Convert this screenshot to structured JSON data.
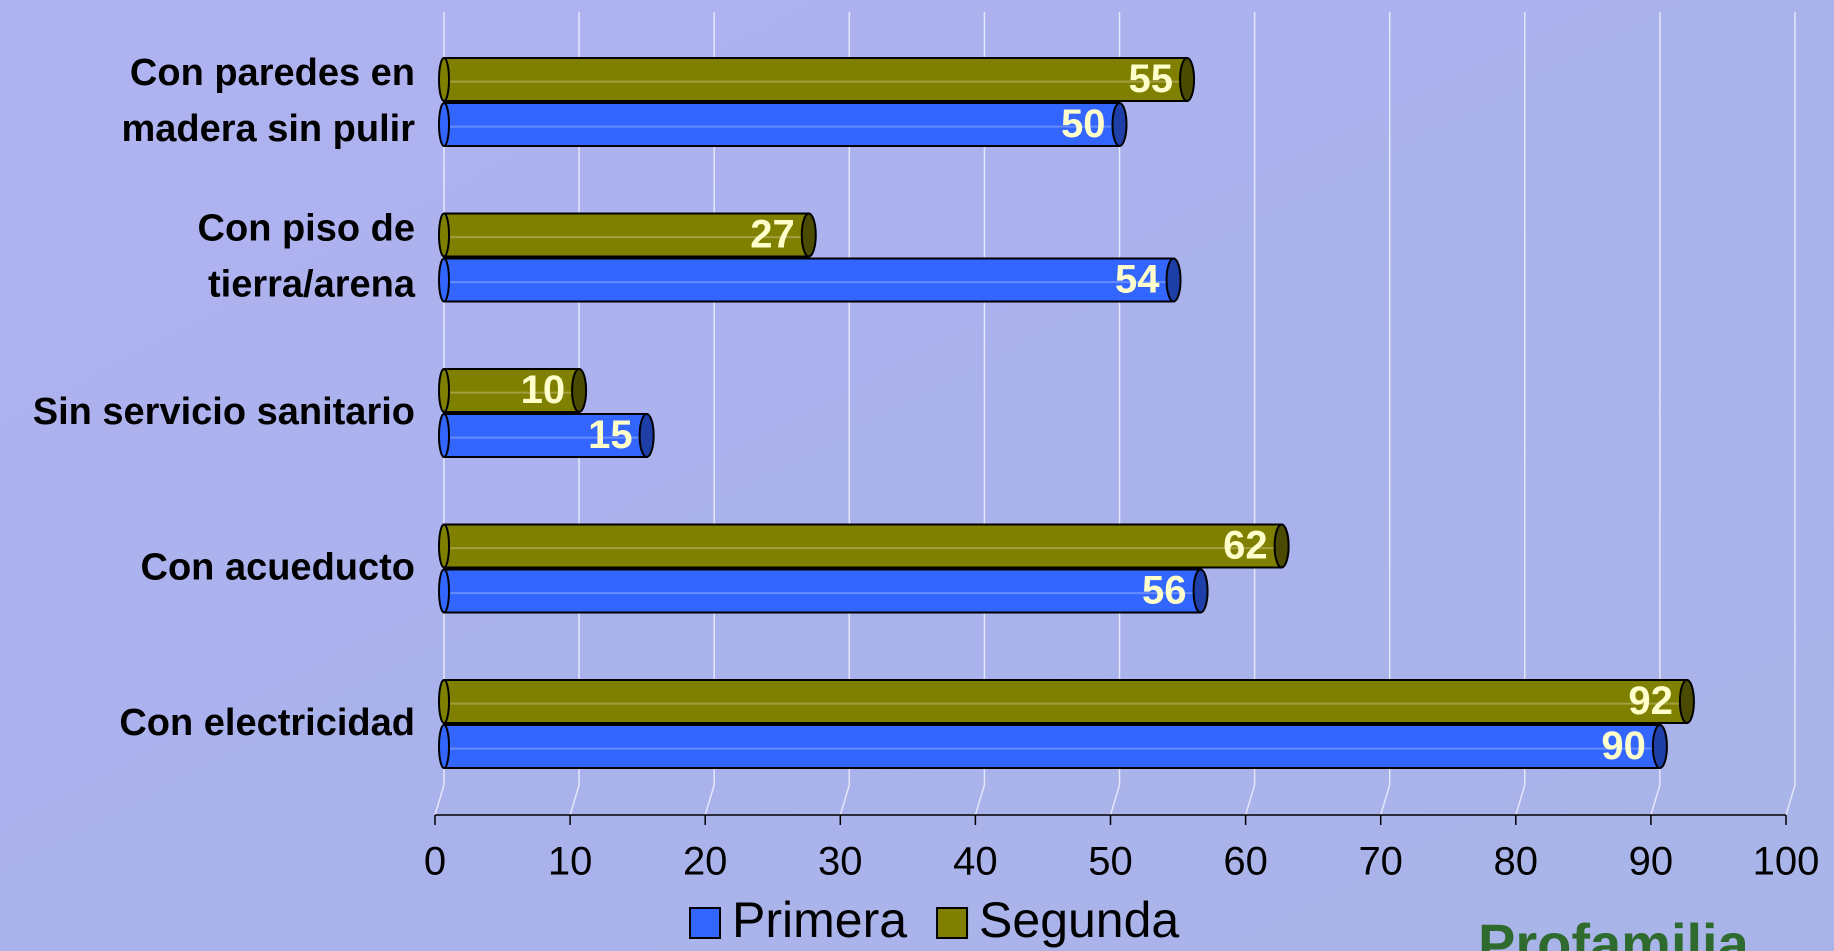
{
  "chart_data": {
    "type": "hbar",
    "categories": [
      "Con paredes en\nmadera sin pulir",
      "Con piso de\ntierra/arena",
      "Sin servicio sanitario",
      "Con acueducto",
      "Con electricidad"
    ],
    "series": [
      {
        "name": "Primera",
        "color": "#3366ff",
        "values": [
          50,
          54,
          15,
          56,
          90
        ]
      },
      {
        "name": "Segunda",
        "color": "#808000",
        "values": [
          55,
          27,
          10,
          62,
          92
        ]
      }
    ],
    "xlim": [
      0,
      100
    ],
    "xticks": [
      0,
      10,
      20,
      30,
      40,
      50,
      60,
      70,
      80,
      90,
      100
    ],
    "grid": true,
    "legend": "bottom",
    "logo_text": "Profamilia"
  }
}
